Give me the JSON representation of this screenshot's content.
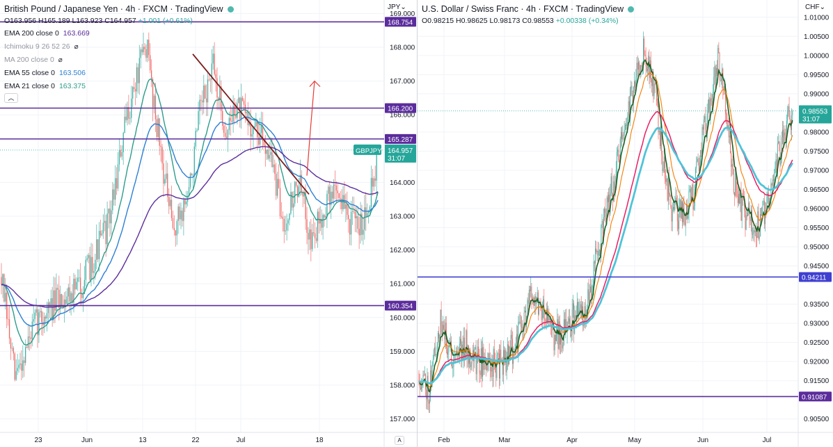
{
  "colors": {
    "up": "#26a69a",
    "down": "#ef5350",
    "level_line": "#5b2c9c",
    "blue_level": "#3f3fd1",
    "trendline": "#7b1e1e",
    "arrow": "#e53935",
    "ema21_left": "#2d9c8a",
    "ema55_left": "#2a7fd4",
    "ema200_left": "#5b2c9c",
    "right_fast": "#1b5e20",
    "right_mid": "#f57c00",
    "right_slow": "#e91e63",
    "right_long": "#4fc3d8",
    "price_tag": "#26a69a",
    "gridline": "#f0f3fa"
  },
  "left_chart": {
    "title": "British Pound / Japanese Yen · 4h · FXCM · TradingView",
    "ohlc": {
      "o": "O163.956",
      "h": "H165.189",
      "l": "L163.923",
      "c": "C164.957",
      "chg": "+1.001 (+0.61%)"
    },
    "indicators": [
      {
        "label": "EMA 200 close 0",
        "value": "163.669",
        "color": "#5b2c9c",
        "hidden": false
      },
      {
        "label": "Ichimoku 9 26 52 26",
        "value": "",
        "color": "#9598a1",
        "hidden": true
      },
      {
        "label": "MA 200 close 0",
        "value": "",
        "color": "#9598a1",
        "hidden": true
      },
      {
        "label": "EMA 55 close 0",
        "value": "163.506",
        "color": "#2a7fd4",
        "hidden": false
      },
      {
        "label": "EMA 21 close 0",
        "value": "163.375",
        "color": "#2d9c8a",
        "hidden": false
      }
    ],
    "collapse_glyph": "︿",
    "currency": "JPY",
    "auto_label": "A",
    "y_ticks": [
      "169.000",
      "168.000",
      "167.000",
      "166.000",
      "164.000",
      "163.000",
      "162.000",
      "161.000",
      "160.000",
      "159.000",
      "158.000",
      "157.000"
    ],
    "y_tick_values": [
      169,
      168,
      167,
      166,
      164,
      163,
      162,
      161,
      160,
      159,
      158,
      157
    ],
    "x_labels": [
      "23",
      "Jun",
      "13",
      "22",
      "Jul",
      "18"
    ],
    "levels": [
      {
        "label": "168.754",
        "value": 168.754
      },
      {
        "label": "166.200",
        "value": 166.2
      },
      {
        "label": "165.287",
        "value": 165.287
      },
      {
        "label": "160.354",
        "value": 160.354
      }
    ],
    "price_tag": {
      "symbol": "GBPJPY",
      "price": "164.957",
      "countdown": "31:07",
      "value": 164.957
    }
  },
  "right_chart": {
    "title": "U.S. Dollar / Swiss Franc · 4h · FXCM · TradingView",
    "ohlc": {
      "o": "O0.98215",
      "h": "H0.98625",
      "l": "L0.98173",
      "c": "C0.98553",
      "chg": "+0.00338 (+0.34%)"
    },
    "currency": "CHF",
    "y_ticks": [
      "1.01000",
      "1.00500",
      "1.00000",
      "0.99500",
      "0.99000",
      "0.98000",
      "0.97500",
      "0.97000",
      "0.96500",
      "0.96000",
      "0.95500",
      "0.95000",
      "0.94500",
      "0.93500",
      "0.93000",
      "0.92500",
      "0.92000",
      "0.91500",
      "0.90500"
    ],
    "y_tick_values": [
      1.01,
      1.005,
      1.0,
      0.995,
      0.99,
      0.98,
      0.975,
      0.97,
      0.965,
      0.96,
      0.955,
      0.95,
      0.945,
      0.935,
      0.93,
      0.925,
      0.92,
      0.915,
      0.905
    ],
    "x_labels": [
      "Feb",
      "Mar",
      "Apr",
      "May",
      "Jun",
      "Jul"
    ],
    "levels": [
      {
        "label": "0.94211",
        "value": 0.94211,
        "kind": "blue"
      },
      {
        "label": "0.91087",
        "value": 0.91087,
        "kind": "purple"
      }
    ],
    "price_tag": {
      "price": "0.98553",
      "countdown": "31:07",
      "value": 0.98553
    }
  },
  "chart_data": [
    {
      "type": "candlestick",
      "title": "British Pound / Japanese Yen · 4h · FXCM · TradingView",
      "ylim": [
        156.6,
        169.4
      ],
      "x_ticks": [
        "23",
        "Jun",
        "13",
        "22",
        "Jul",
        "18"
      ],
      "anchors": [
        [
          0,
          161.2
        ],
        [
          10,
          158.2
        ],
        [
          25,
          159.8
        ],
        [
          45,
          160.6
        ],
        [
          60,
          161.0
        ],
        [
          80,
          162.8
        ],
        [
          95,
          166.2
        ],
        [
          108,
          168.1
        ],
        [
          118,
          165.2
        ],
        [
          128,
          162.5
        ],
        [
          140,
          163.7
        ],
        [
          148,
          166.0
        ],
        [
          158,
          167.4
        ],
        [
          168,
          165.4
        ],
        [
          175,
          166.3
        ],
        [
          188,
          165.6
        ],
        [
          200,
          165.0
        ],
        [
          210,
          162.8
        ],
        [
          222,
          164.0
        ],
        [
          232,
          162.2
        ],
        [
          240,
          163.2
        ],
        [
          250,
          163.9
        ],
        [
          258,
          163.0
        ],
        [
          266,
          162.6
        ],
        [
          272,
          163.2
        ],
        [
          280,
          164.6
        ]
      ],
      "last_close": 164.957,
      "levels": [
        168.754,
        166.2,
        165.287,
        160.354
      ],
      "trendline": [
        [
          167.8
        ],
        [
          163.65
        ]
      ],
      "ema": [
        {
          "name": "EMA 21 close 0",
          "last": 163.375
        },
        {
          "name": "EMA 55 close 0",
          "last": 163.506
        },
        {
          "name": "EMA 200 close 0",
          "last": 163.669
        }
      ]
    },
    {
      "type": "candlestick",
      "title": "U.S. Dollar / Swiss Franc · 4h · FXCM · TradingView",
      "ylim": [
        0.9015,
        1.0145
      ],
      "x_ticks": [
        "Feb",
        "Mar",
        "Apr",
        "May",
        "Jun",
        "Jul"
      ],
      "anchors": [
        [
          0,
          0.917
        ],
        [
          12,
          0.913
        ],
        [
          25,
          0.93
        ],
        [
          40,
          0.922
        ],
        [
          55,
          0.9245
        ],
        [
          70,
          0.9205
        ],
        [
          85,
          0.9195
        ],
        [
          100,
          0.9195
        ],
        [
          115,
          0.924
        ],
        [
          128,
          0.931
        ],
        [
          138,
          0.939
        ],
        [
          150,
          0.934
        ],
        [
          162,
          0.927
        ],
        [
          175,
          0.927
        ],
        [
          185,
          0.931
        ],
        [
          200,
          0.932
        ],
        [
          215,
          0.948
        ],
        [
          235,
          0.967
        ],
        [
          255,
          0.988
        ],
        [
          270,
          1.001
        ],
        [
          285,
          0.992
        ],
        [
          295,
          0.972
        ],
        [
          305,
          0.96
        ],
        [
          318,
          0.958
        ],
        [
          330,
          0.962
        ],
        [
          342,
          0.978
        ],
        [
          352,
          0.986
        ],
        [
          360,
          0.999
        ],
        [
          368,
          0.994
        ],
        [
          378,
          0.968
        ],
        [
          390,
          0.96
        ],
        [
          402,
          0.956
        ],
        [
          412,
          0.956
        ],
        [
          422,
          0.962
        ],
        [
          432,
          0.972
        ],
        [
          442,
          0.98
        ],
        [
          450,
          0.985
        ]
      ],
      "last_close": 0.98553,
      "levels": [
        0.94211,
        0.91087
      ]
    }
  ]
}
